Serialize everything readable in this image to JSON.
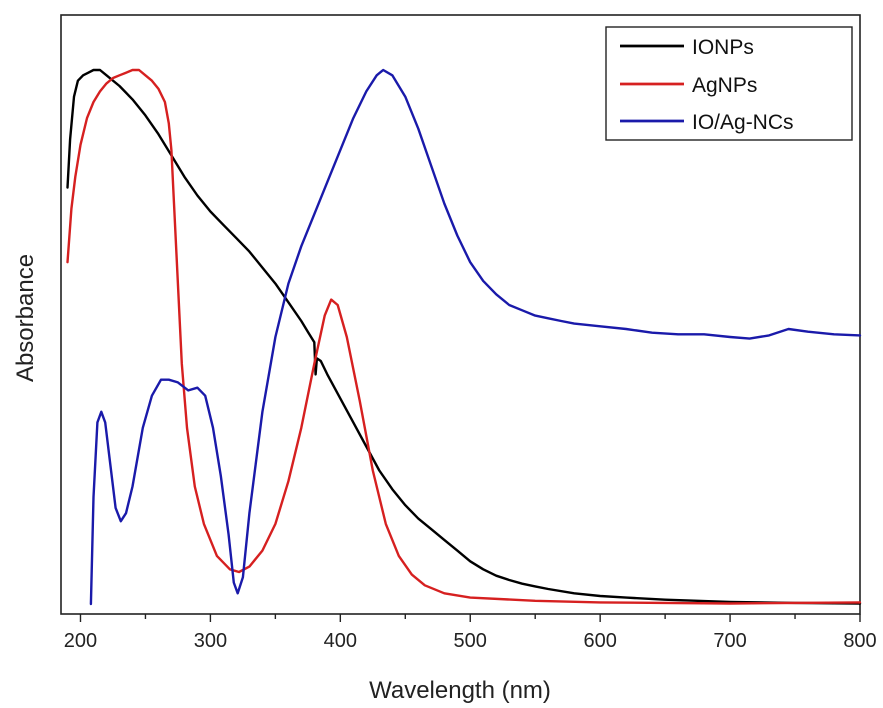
{
  "chart_data": {
    "type": "line",
    "title": "",
    "xlabel": "Wavelength (nm)",
    "ylabel": "Absorbance",
    "xlim": [
      185,
      800
    ],
    "ylim": [
      0,
      1.0
    ],
    "x_ticks": [
      200,
      300,
      400,
      500,
      600,
      700,
      800
    ],
    "x_tick_labels": [
      "200",
      "300",
      "400",
      "500",
      "600",
      "700",
      "800"
    ],
    "y_tick_labels_visible": false,
    "legend_position": "top-right",
    "series": [
      {
        "name": "IONPs",
        "color": "#000000",
        "points": [
          [
            190,
            0.78
          ],
          [
            192,
            0.87
          ],
          [
            195,
            0.95
          ],
          [
            198,
            0.98
          ],
          [
            202,
            0.99
          ],
          [
            206,
            0.995
          ],
          [
            210,
            1.0
          ],
          [
            215,
            1.0
          ],
          [
            220,
            0.99
          ],
          [
            230,
            0.97
          ],
          [
            240,
            0.945
          ],
          [
            250,
            0.915
          ],
          [
            260,
            0.88
          ],
          [
            270,
            0.84
          ],
          [
            280,
            0.8
          ],
          [
            290,
            0.765
          ],
          [
            300,
            0.735
          ],
          [
            310,
            0.71
          ],
          [
            320,
            0.685
          ],
          [
            330,
            0.66
          ],
          [
            340,
            0.63
          ],
          [
            350,
            0.6
          ],
          [
            360,
            0.565
          ],
          [
            370,
            0.53
          ],
          [
            375,
            0.51
          ],
          [
            380,
            0.49
          ],
          [
            381,
            0.43
          ],
          [
            382,
            0.46
          ],
          [
            385,
            0.455
          ],
          [
            390,
            0.43
          ],
          [
            400,
            0.385
          ],
          [
            410,
            0.34
          ],
          [
            420,
            0.295
          ],
          [
            430,
            0.25
          ],
          [
            440,
            0.215
          ],
          [
            450,
            0.185
          ],
          [
            460,
            0.16
          ],
          [
            470,
            0.14
          ],
          [
            480,
            0.12
          ],
          [
            490,
            0.1
          ],
          [
            500,
            0.08
          ],
          [
            510,
            0.065
          ],
          [
            520,
            0.053
          ],
          [
            530,
            0.045
          ],
          [
            540,
            0.038
          ],
          [
            550,
            0.033
          ],
          [
            560,
            0.028
          ],
          [
            580,
            0.02
          ],
          [
            600,
            0.015
          ],
          [
            620,
            0.012
          ],
          [
            650,
            0.008
          ],
          [
            700,
            0.004
          ],
          [
            750,
            0.002
          ],
          [
            800,
            0.001
          ]
        ]
      },
      {
        "name": "AgNPs",
        "color": "#d62020",
        "points": [
          [
            190,
            0.64
          ],
          [
            193,
            0.74
          ],
          [
            196,
            0.8
          ],
          [
            200,
            0.86
          ],
          [
            205,
            0.91
          ],
          [
            210,
            0.94
          ],
          [
            215,
            0.96
          ],
          [
            220,
            0.975
          ],
          [
            225,
            0.985
          ],
          [
            230,
            0.99
          ],
          [
            235,
            0.995
          ],
          [
            240,
            1.0
          ],
          [
            245,
            1.0
          ],
          [
            250,
            0.99
          ],
          [
            255,
            0.98
          ],
          [
            260,
            0.965
          ],
          [
            265,
            0.94
          ],
          [
            268,
            0.9
          ],
          [
            270,
            0.85
          ],
          [
            272,
            0.75
          ],
          [
            275,
            0.6
          ],
          [
            278,
            0.45
          ],
          [
            282,
            0.33
          ],
          [
            288,
            0.22
          ],
          [
            295,
            0.15
          ],
          [
            305,
            0.09
          ],
          [
            315,
            0.065
          ],
          [
            322,
            0.06
          ],
          [
            330,
            0.07
          ],
          [
            340,
            0.1
          ],
          [
            350,
            0.15
          ],
          [
            360,
            0.23
          ],
          [
            370,
            0.33
          ],
          [
            380,
            0.45
          ],
          [
            388,
            0.54
          ],
          [
            393,
            0.57
          ],
          [
            398,
            0.56
          ],
          [
            405,
            0.5
          ],
          [
            415,
            0.38
          ],
          [
            425,
            0.25
          ],
          [
            435,
            0.15
          ],
          [
            445,
            0.09
          ],
          [
            455,
            0.055
          ],
          [
            465,
            0.035
          ],
          [
            480,
            0.02
          ],
          [
            500,
            0.012
          ],
          [
            550,
            0.006
          ],
          [
            600,
            0.003
          ],
          [
            700,
            0.001
          ],
          [
            800,
            0.003
          ]
        ]
      },
      {
        "name": "IO/Ag-NCs",
        "color": "#1a1aaa",
        "points": [
          [
            208,
            0.0
          ],
          [
            210,
            0.2
          ],
          [
            213,
            0.34
          ],
          [
            216,
            0.36
          ],
          [
            219,
            0.34
          ],
          [
            223,
            0.26
          ],
          [
            227,
            0.18
          ],
          [
            231,
            0.155
          ],
          [
            235,
            0.17
          ],
          [
            240,
            0.22
          ],
          [
            248,
            0.33
          ],
          [
            255,
            0.39
          ],
          [
            262,
            0.42
          ],
          [
            268,
            0.42
          ],
          [
            275,
            0.415
          ],
          [
            283,
            0.4
          ],
          [
            290,
            0.405
          ],
          [
            296,
            0.39
          ],
          [
            302,
            0.33
          ],
          [
            308,
            0.24
          ],
          [
            314,
            0.13
          ],
          [
            318,
            0.04
          ],
          [
            321,
            0.02
          ],
          [
            325,
            0.05
          ],
          [
            330,
            0.17
          ],
          [
            340,
            0.36
          ],
          [
            350,
            0.5
          ],
          [
            360,
            0.6
          ],
          [
            370,
            0.67
          ],
          [
            380,
            0.73
          ],
          [
            390,
            0.79
          ],
          [
            400,
            0.85
          ],
          [
            410,
            0.91
          ],
          [
            420,
            0.96
          ],
          [
            428,
            0.99
          ],
          [
            433,
            1.0
          ],
          [
            440,
            0.99
          ],
          [
            450,
            0.95
          ],
          [
            460,
            0.89
          ],
          [
            470,
            0.82
          ],
          [
            480,
            0.75
          ],
          [
            490,
            0.69
          ],
          [
            500,
            0.64
          ],
          [
            510,
            0.605
          ],
          [
            520,
            0.58
          ],
          [
            530,
            0.56
          ],
          [
            540,
            0.55
          ],
          [
            550,
            0.54
          ],
          [
            560,
            0.535
          ],
          [
            570,
            0.53
          ],
          [
            580,
            0.525
          ],
          [
            600,
            0.52
          ],
          [
            620,
            0.515
          ],
          [
            640,
            0.508
          ],
          [
            660,
            0.505
          ],
          [
            680,
            0.505
          ],
          [
            700,
            0.5
          ],
          [
            715,
            0.497
          ],
          [
            730,
            0.503
          ],
          [
            745,
            0.515
          ],
          [
            760,
            0.51
          ],
          [
            780,
            0.505
          ],
          [
            800,
            0.503
          ]
        ]
      }
    ]
  }
}
